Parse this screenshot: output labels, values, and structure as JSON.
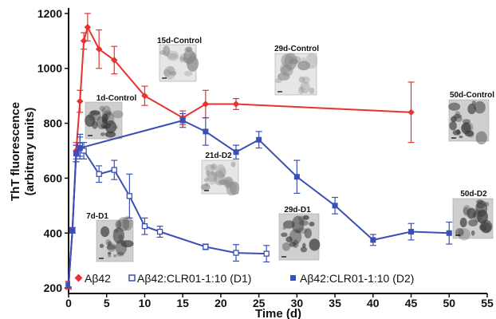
{
  "chart_data": {
    "type": "line",
    "xlabel": "Time (d)",
    "ylabel_lines": [
      "ThT fluorescence",
      "(arbitrary units)"
    ],
    "xlim": [
      0,
      55
    ],
    "ylim": [
      180,
      1220
    ],
    "x_ticks": [
      0,
      5,
      10,
      15,
      20,
      25,
      30,
      35,
      40,
      45,
      50,
      55
    ],
    "y_ticks": [
      200,
      400,
      600,
      800,
      1000,
      1200
    ],
    "legend_position": "bottom-left",
    "series": [
      {
        "name": "Aβ42",
        "color": "#e8322f",
        "marker": "diamond",
        "points": [
          {
            "x": 0,
            "y": 210,
            "err": 15
          },
          {
            "x": 0.5,
            "y": 410,
            "err": 10
          },
          {
            "x": 1,
            "y": 700,
            "err": 30
          },
          {
            "x": 1.5,
            "y": 880,
            "err": 40
          },
          {
            "x": 2,
            "y": 1100,
            "err": 30
          },
          {
            "x": 2.5,
            "y": 1150,
            "err": 50
          },
          {
            "x": 4,
            "y": 1070,
            "err": 70
          },
          {
            "x": 6,
            "y": 1030,
            "err": 50
          },
          {
            "x": 10,
            "y": 900,
            "err": 35
          },
          {
            "x": 15,
            "y": 820,
            "err": 25
          },
          {
            "x": 18,
            "y": 870,
            "err": 50
          },
          {
            "x": 22,
            "y": 870,
            "err": 20
          },
          {
            "x": 45,
            "y": 840,
            "err": 110
          }
        ]
      },
      {
        "name": "Aβ42:CLR01-1:10 (D1)",
        "color": "#3b4fb8",
        "marker": "open-square",
        "points": [
          {
            "x": 0,
            "y": 210,
            "err": 10
          },
          {
            "x": 0.5,
            "y": 410,
            "err": 10
          },
          {
            "x": 1,
            "y": 690,
            "err": 30
          },
          {
            "x": 1.5,
            "y": 720,
            "err": 40
          },
          {
            "x": 2,
            "y": 700,
            "err": 30
          },
          {
            "x": 4,
            "y": 615,
            "err": 30
          },
          {
            "x": 6,
            "y": 630,
            "err": 35
          },
          {
            "x": 8,
            "y": 535,
            "err": 80
          },
          {
            "x": 10,
            "y": 425,
            "err": 30
          },
          {
            "x": 12,
            "y": 405,
            "err": 20
          },
          {
            "x": 18,
            "y": 350,
            "err": 10
          },
          {
            "x": 22,
            "y": 328,
            "err": 30
          },
          {
            "x": 26,
            "y": 325,
            "err": 30
          }
        ]
      },
      {
        "name": "Aβ42:CLR01-1:10 (D2)",
        "color": "#3b4fb8",
        "marker": "filled-square",
        "points": [
          {
            "x": 0,
            "y": 210,
            "err": 10
          },
          {
            "x": 0.5,
            "y": 410,
            "err": 10
          },
          {
            "x": 1,
            "y": 690,
            "err": 30
          },
          {
            "x": 1.5,
            "y": 710,
            "err": 40
          },
          {
            "x": 15,
            "y": 810,
            "err": 25
          },
          {
            "x": 18,
            "y": 770,
            "err": 50
          },
          {
            "x": 22,
            "y": 695,
            "err": 25
          },
          {
            "x": 25,
            "y": 740,
            "err": 30
          },
          {
            "x": 30,
            "y": 605,
            "err": 60
          },
          {
            "x": 35,
            "y": 500,
            "err": 30
          },
          {
            "x": 40,
            "y": 375,
            "err": 20
          },
          {
            "x": 45,
            "y": 405,
            "err": 30
          },
          {
            "x": 50,
            "y": 400,
            "err": 40
          }
        ]
      }
    ],
    "insets": [
      {
        "label": "1d-Control"
      },
      {
        "label": "15d-Control"
      },
      {
        "label": "29d-Control"
      },
      {
        "label": "50d-Control"
      },
      {
        "label": "7d-D1"
      },
      {
        "label": "21d-D2"
      },
      {
        "label": "29d-D1"
      },
      {
        "label": "50d-D2"
      }
    ]
  }
}
